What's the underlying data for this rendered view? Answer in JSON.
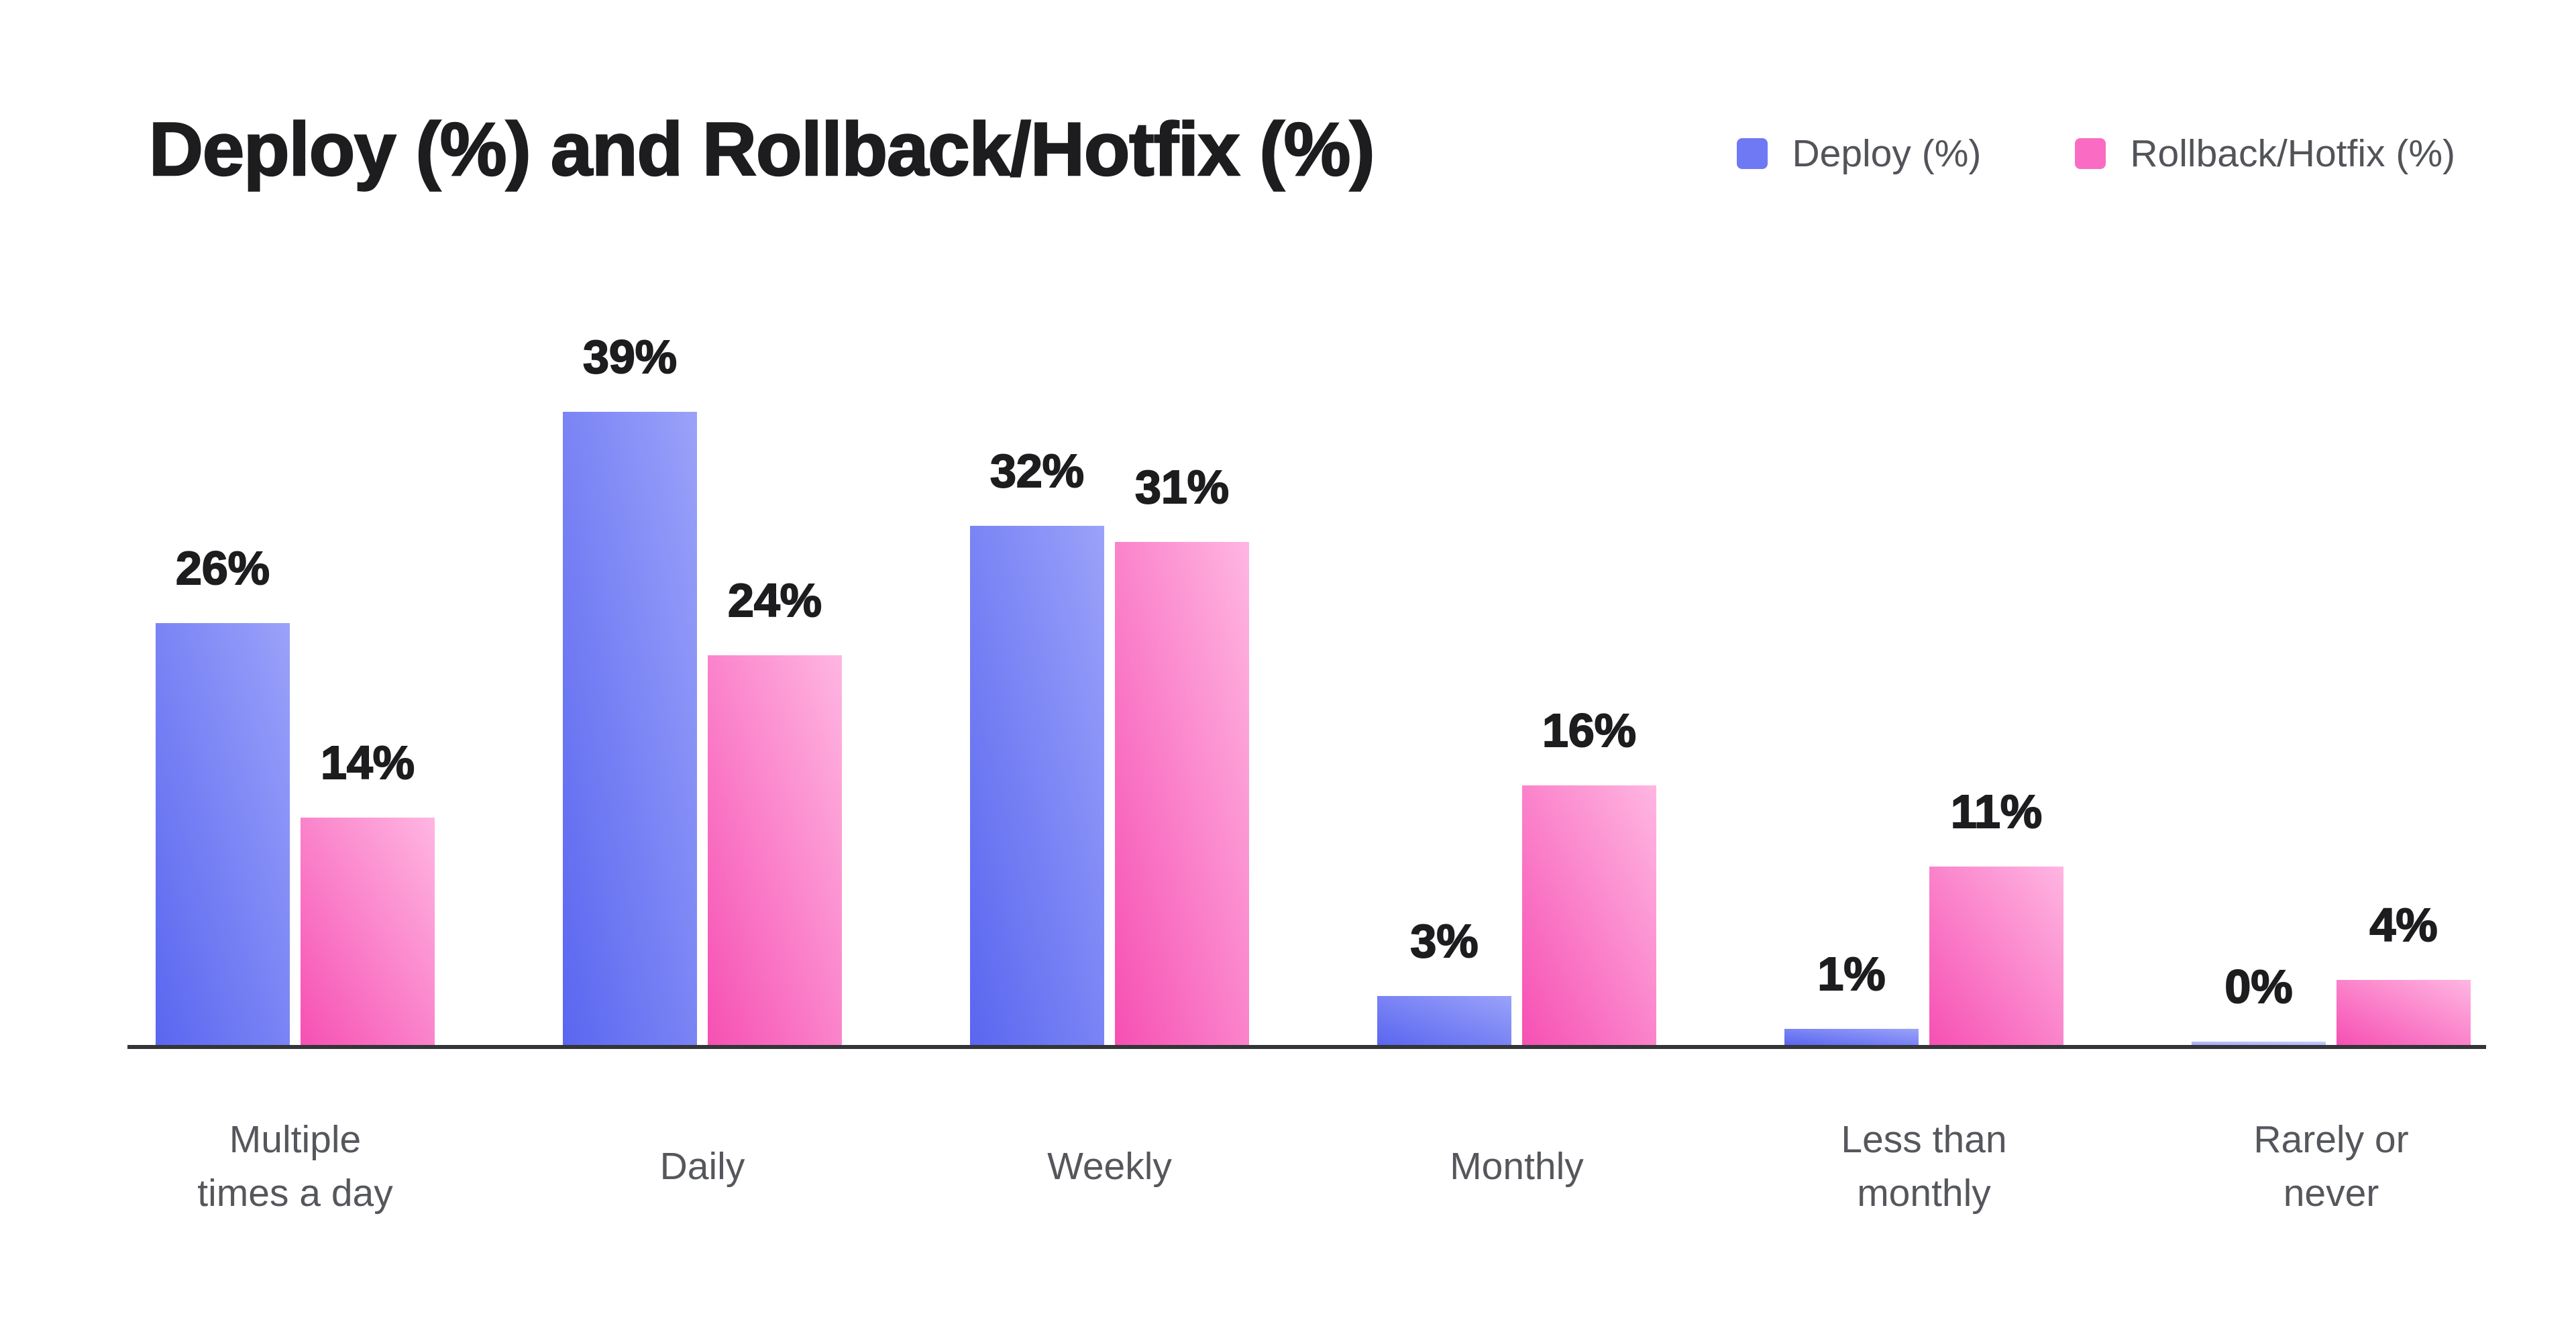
{
  "chart_data": {
    "type": "bar",
    "title": "Deploy (%) and Rollback/Hotfix (%)",
    "legend_position": "top-right",
    "grid": false,
    "ylim": [
      0,
      40
    ],
    "value_suffix": "%",
    "categories": [
      [
        "Multiple",
        "times a day"
      ],
      [
        "Daily"
      ],
      [
        "Weekly"
      ],
      [
        "Monthly"
      ],
      [
        "Less than",
        "monthly"
      ],
      [
        "Rarely or",
        "never"
      ]
    ],
    "series": [
      {
        "name": "Deploy (%)",
        "values": [
          26,
          39,
          32,
          3,
          1,
          0
        ],
        "labels": [
          "26%",
          "39%",
          "32%",
          "3%",
          "1%",
          "0%"
        ],
        "gradient_start": "#5a66f0",
        "gradient_end": "#9aa2f9",
        "legend_color": "#6e79f3"
      },
      {
        "name": "Rollback/Hotfix (%)",
        "values": [
          14,
          24,
          31,
          16,
          11,
          4
        ],
        "labels": [
          "14%",
          "24%",
          "31%",
          "16%",
          "11%",
          "4%"
        ],
        "gradient_start": "#f650b3",
        "gradient_end": "#ffb6e2",
        "legend_color": "#fa6cc3"
      }
    ],
    "colors": {
      "title": "#1d1d1f",
      "value_label": "#1d1d1f",
      "category_label": "#55575c",
      "legend_label": "#525459",
      "axis_line": "#333538",
      "background": "#ffffff"
    }
  }
}
